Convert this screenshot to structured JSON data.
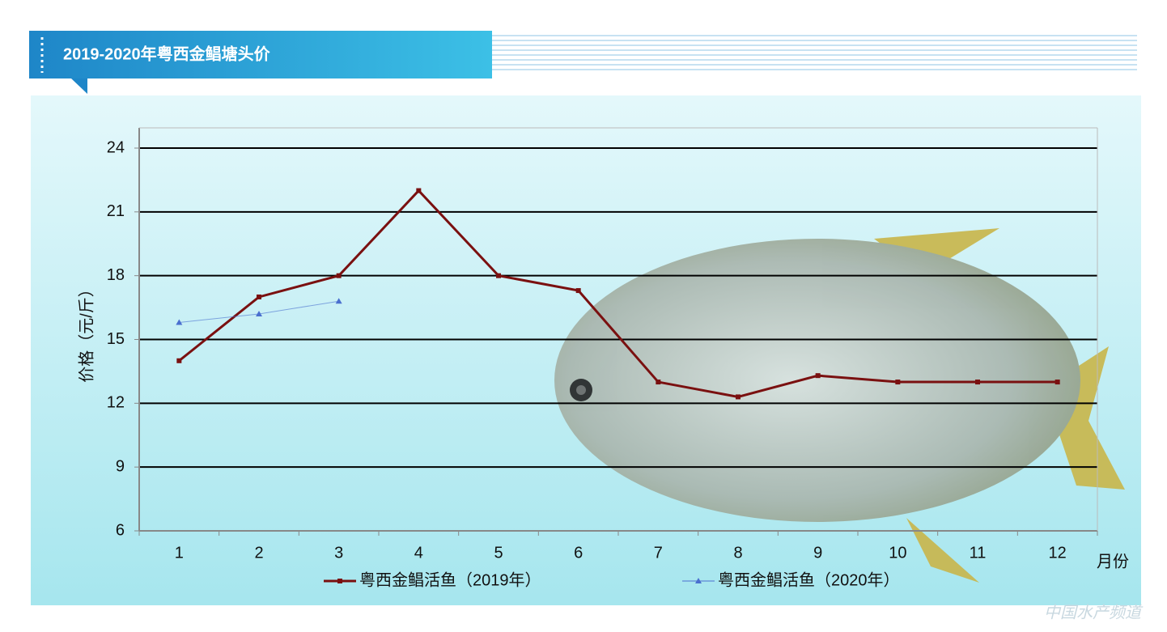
{
  "chart_data": {
    "type": "line",
    "title": "2019-2020年粤西金鲳塘头价",
    "y_label": "价格（元/斤）",
    "x_label": "月份",
    "categories": [
      "1",
      "2",
      "3",
      "4",
      "5",
      "6",
      "7",
      "8",
      "9",
      "10",
      "11",
      "12"
    ],
    "series": [
      {
        "name": "粤西金鲳活鱼（2019年）",
        "color": "#7a1010",
        "marker": "square",
        "values": [
          14,
          17,
          18,
          22,
          18,
          17.3,
          13,
          12.3,
          13.3,
          13,
          13,
          13
        ]
      },
      {
        "name": "粤西金鲳活鱼（2020年）",
        "color": "#4a6fcf",
        "marker": "triangle",
        "values": [
          15.8,
          16.2,
          16.8,
          null,
          null,
          null,
          null,
          null,
          null,
          null,
          null,
          null
        ]
      }
    ],
    "ylim": [
      6,
      24
    ],
    "yticks": [
      6,
      9,
      12,
      15,
      18,
      21,
      24
    ],
    "grid": true,
    "watermark": "中国水产频道"
  }
}
